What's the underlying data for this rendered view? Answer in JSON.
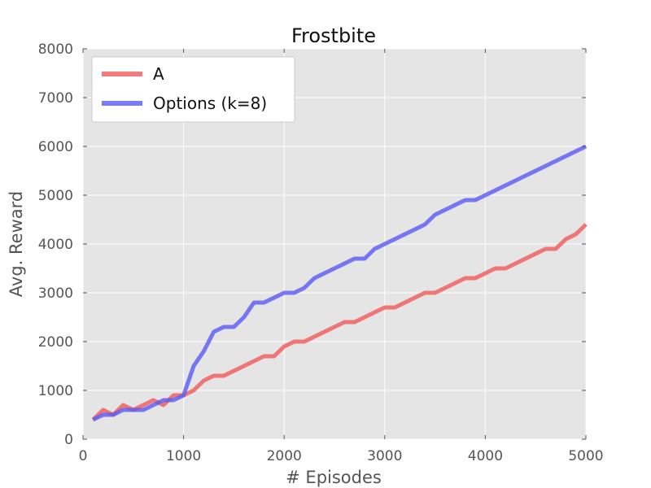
{
  "chart_data": {
    "type": "line",
    "title": "Frostbite",
    "xlabel": "# Episodes",
    "ylabel": "Avg. Reward",
    "xlim": [
      0,
      5000
    ],
    "ylim": [
      0,
      8000
    ],
    "xticks": [
      "0",
      "1000",
      "2000",
      "3000",
      "4000",
      "5000"
    ],
    "yticks": [
      "0",
      "1000",
      "2000",
      "3000",
      "4000",
      "5000",
      "6000",
      "7000",
      "8000"
    ],
    "grid": true,
    "legend_position": "top-left",
    "background_color": "#e5e5e5",
    "series": [
      {
        "name": "A",
        "color": "#f05a5a",
        "alpha": 0.8,
        "x": [
          100,
          200,
          300,
          400,
          500,
          600,
          700,
          800,
          900,
          1000,
          1100,
          1200,
          1300,
          1400,
          1500,
          1600,
          1700,
          1800,
          1900,
          2000,
          2100,
          2200,
          2300,
          2400,
          2500,
          2600,
          2700,
          2800,
          2900,
          3000,
          3100,
          3200,
          3300,
          3400,
          3500,
          3600,
          3700,
          3800,
          3900,
          4000,
          4100,
          4200,
          4300,
          4400,
          4500,
          4600,
          4700,
          4800,
          4900,
          5000
        ],
        "y": [
          400,
          600,
          500,
          700,
          600,
          700,
          800,
          700,
          900,
          900,
          1000,
          1200,
          1300,
          1300,
          1400,
          1500,
          1600,
          1700,
          1700,
          1900,
          2000,
          2000,
          2100,
          2200,
          2300,
          2400,
          2400,
          2500,
          2600,
          2700,
          2700,
          2800,
          2900,
          3000,
          3000,
          3100,
          3200,
          3300,
          3300,
          3400,
          3500,
          3500,
          3600,
          3700,
          3800,
          3900,
          3900,
          4100,
          4200,
          4400
        ]
      },
      {
        "name": "Options (k=8)",
        "color": "#5a5af5",
        "alpha": 0.8,
        "x": [
          100,
          200,
          300,
          400,
          500,
          600,
          700,
          800,
          900,
          1000,
          1100,
          1200,
          1300,
          1400,
          1500,
          1600,
          1700,
          1800,
          1900,
          2000,
          2100,
          2200,
          2300,
          2400,
          2500,
          2600,
          2700,
          2800,
          2900,
          3000,
          3100,
          3200,
          3300,
          3400,
          3500,
          3600,
          3700,
          3800,
          3900,
          4000,
          4100,
          4200,
          4300,
          4400,
          4500,
          4600,
          4700,
          4800,
          4900,
          5000
        ],
        "y": [
          400,
          500,
          500,
          600,
          600,
          600,
          700,
          800,
          800,
          900,
          1500,
          1800,
          2200,
          2300,
          2300,
          2500,
          2800,
          2800,
          2900,
          3000,
          3000,
          3100,
          3300,
          3400,
          3500,
          3600,
          3700,
          3700,
          3900,
          4000,
          4100,
          4200,
          4300,
          4400,
          4600,
          4700,
          4800,
          4900,
          4900,
          5000,
          5100,
          5200,
          5300,
          5400,
          5500,
          5600,
          5700,
          5800,
          5900,
          6000
        ]
      }
    ]
  }
}
